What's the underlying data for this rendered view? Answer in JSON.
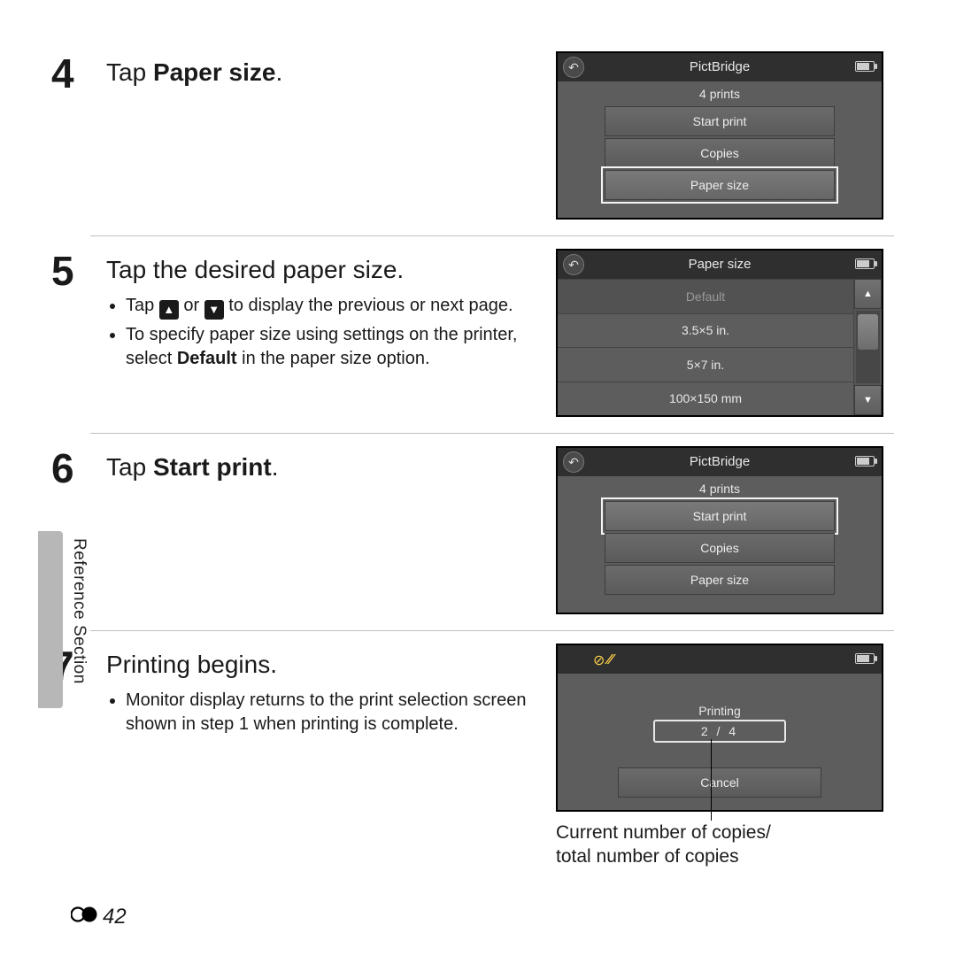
{
  "side_label": "Reference Section",
  "page_number": "42",
  "steps": [
    {
      "num": "4",
      "title_pre": "Tap ",
      "title_bold": "Paper size",
      "title_post": ".",
      "bullets": [],
      "lcd": {
        "title": "PictBridge",
        "sub": "4 prints",
        "items": [
          {
            "label": "Start print",
            "selected": false
          },
          {
            "label": "Copies",
            "selected": false
          },
          {
            "label": "Paper size",
            "selected": true
          }
        ]
      }
    },
    {
      "num": "5",
      "title_pre": "Tap the desired paper size.",
      "title_bold": "",
      "title_post": "",
      "bullets": [
        {
          "segments": [
            {
              "t": "Tap "
            },
            {
              "arrow": "▲"
            },
            {
              "t": " or "
            },
            {
              "arrow": "▼"
            },
            {
              "t": " to display the previous or next page."
            }
          ]
        },
        {
          "segments": [
            {
              "t": "To specify paper size using settings on the printer, select "
            },
            {
              "b": "Default"
            },
            {
              "t": " in the paper size option."
            }
          ]
        }
      ],
      "lcd_list": {
        "title": "Paper size",
        "items": [
          {
            "label": "Default",
            "sel": true
          },
          {
            "label": "3.5×5 in."
          },
          {
            "label": "5×7 in."
          },
          {
            "label": "100×150 mm"
          }
        ]
      }
    },
    {
      "num": "6",
      "title_pre": "Tap ",
      "title_bold": "Start print",
      "title_post": ".",
      "bullets": [],
      "lcd": {
        "title": "PictBridge",
        "sub": "4 prints",
        "items": [
          {
            "label": "Start print",
            "selected": true
          },
          {
            "label": "Copies",
            "selected": false
          },
          {
            "label": "Paper size",
            "selected": false
          }
        ]
      }
    },
    {
      "num": "7",
      "title_pre": "Printing begins.",
      "title_bold": "",
      "title_post": "",
      "bullets": [
        {
          "segments": [
            {
              "t": "Monitor display returns to the print selection screen shown in step 1 when printing is complete."
            }
          ]
        }
      ],
      "lcd_print": {
        "label": "Printing",
        "value": "2 /  4",
        "cancel": "Cancel"
      },
      "callout": "Current number of copies/\ntotal number of copies"
    }
  ]
}
